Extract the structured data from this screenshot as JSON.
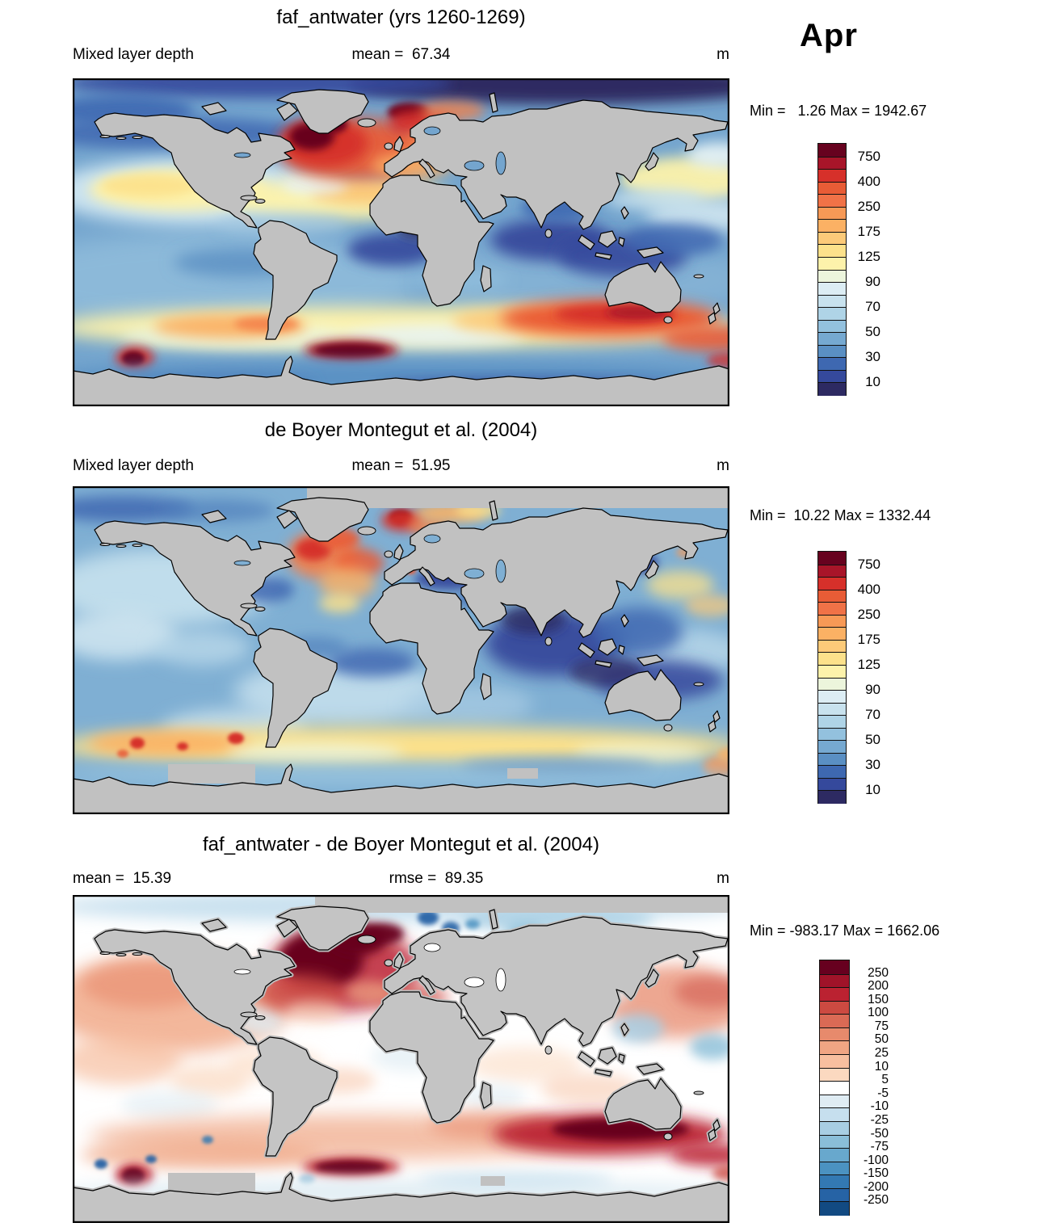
{
  "month_label": "Apr",
  "panel1": {
    "title": "faf_antwater (yrs 1260-1269)",
    "field_label": "Mixed layer depth",
    "mean_text": "mean =  67.34",
    "unit": "m",
    "minmax_text": "Min =   1.26 Max = 1942.67"
  },
  "panel2": {
    "title": "de Boyer Montegut et al. (2004)",
    "field_label": "Mixed layer depth",
    "mean_text": "mean =  51.95",
    "unit": "m",
    "minmax_text": "Min =  10.22 Max = 1332.44"
  },
  "panel3": {
    "title": "faf_antwater - de Boyer Montegut et al. (2004)",
    "mean_text": "mean =  15.39",
    "rmse_text": "rmse =  89.35",
    "unit": "m",
    "minmax_text": "Min = -983.17 Max = 1662.06"
  },
  "colorbar_mld": {
    "tick_labels": [
      "750",
      "400",
      "250",
      "175",
      "125",
      "90",
      "70",
      "50",
      "30",
      "10"
    ],
    "colors_top_to_bottom": [
      "#67021f",
      "#a81529",
      "#d6302a",
      "#e85c36",
      "#f07247",
      "#f79956",
      "#fbb164",
      "#fcca79",
      "#fce18b",
      "#fdf2ab",
      "#ecf5dc",
      "#dcedf4",
      "#c8e2ee",
      "#afd4e7",
      "#93c1de",
      "#76a9d1",
      "#5a8fc3",
      "#3e68b1",
      "#35499c",
      "#2d2a62"
    ]
  },
  "colorbar_diff": {
    "tick_labels": [
      "250",
      "200",
      "150",
      "100",
      "75",
      "50",
      "25",
      "10",
      "5",
      "-5",
      "-10",
      "-25",
      "-50",
      "-75",
      "-100",
      "-150",
      "-200",
      "-250"
    ],
    "colors_top_to_bottom": [
      "#67001f",
      "#a01329",
      "#bb2231",
      "#cc4a41",
      "#da6a55",
      "#e78a6c",
      "#f0a583",
      "#f7bf9f",
      "#fbd9c0",
      "#ffffff",
      "#dfecf3",
      "#c6dfee",
      "#a8cee3",
      "#8abed8",
      "#68a8cd",
      "#4b92c1",
      "#3379b3",
      "#2663a5",
      "#124a82"
    ]
  },
  "chart_data": [
    {
      "type": "heatmap",
      "title": "faf_antwater (yrs 1260-1269)",
      "variable": "Mixed layer depth",
      "units": "m",
      "month": "Apr",
      "mean": 67.34,
      "min": 1.26,
      "max": 1942.67,
      "contour_levels": [
        10,
        20,
        30,
        40,
        50,
        60,
        70,
        80,
        90,
        100,
        125,
        150,
        175,
        200,
        250,
        300,
        400,
        500,
        750
      ],
      "labeled_levels": [
        10,
        30,
        50,
        70,
        90,
        125,
        175,
        250,
        400,
        750
      ],
      "palette_low_to_high": [
        "#2d2a62",
        "#35499c",
        "#3e68b1",
        "#5a8fc3",
        "#76a9d1",
        "#93c1de",
        "#afd4e7",
        "#c8e2ee",
        "#dcedf4",
        "#ecf5dc",
        "#fdf2ab",
        "#fce18b",
        "#fcca79",
        "#fbb164",
        "#f79956",
        "#f07247",
        "#e85c36",
        "#d6302a",
        "#a81529",
        "#67021f"
      ],
      "legend_position": "right",
      "projection": "global equirectangular map, land masked gray"
    },
    {
      "type": "heatmap",
      "title": "de Boyer Montegut et al. (2004)",
      "variable": "Mixed layer depth",
      "units": "m",
      "month": "Apr",
      "mean": 51.95,
      "min": 10.22,
      "max": 1332.44,
      "contour_levels": [
        10,
        20,
        30,
        40,
        50,
        60,
        70,
        80,
        90,
        100,
        125,
        150,
        175,
        200,
        250,
        300,
        400,
        500,
        750
      ],
      "labeled_levels": [
        10,
        30,
        50,
        70,
        90,
        125,
        175,
        250,
        400,
        750
      ],
      "palette_low_to_high": [
        "#2d2a62",
        "#35499c",
        "#3e68b1",
        "#5a8fc3",
        "#76a9d1",
        "#93c1de",
        "#afd4e7",
        "#c8e2ee",
        "#dcedf4",
        "#ecf5dc",
        "#fdf2ab",
        "#fce18b",
        "#fcca79",
        "#fbb164",
        "#f79956",
        "#f07247",
        "#e85c36",
        "#d6302a",
        "#a81529",
        "#67021f"
      ],
      "legend_position": "right",
      "projection": "global equirectangular map, land and polar no-data masked gray"
    },
    {
      "type": "heatmap",
      "title": "faf_antwater - de Boyer Montegut et al. (2004)",
      "units": "m",
      "month": "Apr",
      "mean": 15.39,
      "rmse": 89.35,
      "min": -983.17,
      "max": 1662.06,
      "contour_levels": [
        -250,
        -200,
        -150,
        -100,
        -75,
        -50,
        -25,
        -10,
        -5,
        5,
        10,
        25,
        50,
        75,
        100,
        150,
        200,
        250
      ],
      "labeled_levels": [
        -250,
        -200,
        -150,
        -100,
        -75,
        -50,
        -25,
        -10,
        -5,
        5,
        10,
        25,
        50,
        75,
        100,
        150,
        200,
        250
      ],
      "palette_low_to_high": [
        "#124a82",
        "#2663a5",
        "#3379b3",
        "#4b92c1",
        "#68a8cd",
        "#8abed8",
        "#a8cee3",
        "#c6dfee",
        "#dfecf3",
        "#ffffff",
        "#fbd9c0",
        "#f7bf9f",
        "#f0a583",
        "#e78a6c",
        "#da6a55",
        "#cc4a41",
        "#bb2231",
        "#a01329",
        "#67001f"
      ],
      "legend_position": "right",
      "projection": "global equirectangular map, land masked gray"
    }
  ]
}
